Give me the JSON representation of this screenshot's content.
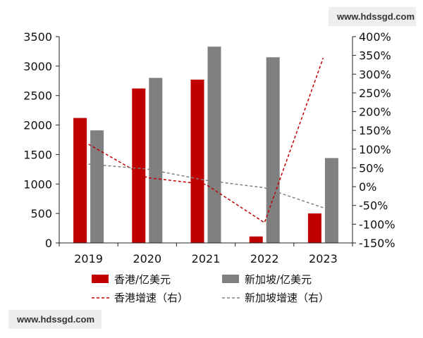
{
  "watermarks": {
    "top": "www.hdssgd.com",
    "bottom": "www.hdssgd.com"
  },
  "chart_data": {
    "type": "bar",
    "categories": [
      "2019",
      "2020",
      "2021",
      "2022",
      "2023"
    ],
    "left_axis": {
      "ylim": [
        0,
        3500
      ],
      "ticks": [
        "0",
        "500",
        "1000",
        "1500",
        "2000",
        "2500",
        "3000",
        "3500"
      ]
    },
    "right_axis": {
      "ylim": [
        -150,
        400
      ],
      "ticks": [
        "-150%",
        "-100%",
        "-50%",
        "0%",
        "50%",
        "100%",
        "150%",
        "200%",
        "250%",
        "300%",
        "350%",
        "400%"
      ]
    },
    "series": [
      {
        "name": "香港/亿美元",
        "kind": "bar",
        "axis": "left",
        "color": "#c00000",
        "values": [
          2120,
          2620,
          2770,
          110,
          500
        ]
      },
      {
        "name": "新加坡/亿美元",
        "kind": "bar",
        "axis": "left",
        "color": "#808080",
        "values": [
          1910,
          2800,
          3330,
          3150,
          1440
        ]
      },
      {
        "name": "香港增速（右）",
        "kind": "line",
        "style": "dashed",
        "axis": "right",
        "color": "#c00000",
        "values": [
          113,
          24,
          6,
          -96,
          343
        ]
      },
      {
        "name": "新加坡增速（右）",
        "kind": "line",
        "style": "dashed",
        "axis": "right",
        "color": "#808080",
        "values": [
          60,
          47,
          17,
          -3,
          -56
        ]
      }
    ],
    "legend_placement": "bottom",
    "grid": false
  }
}
